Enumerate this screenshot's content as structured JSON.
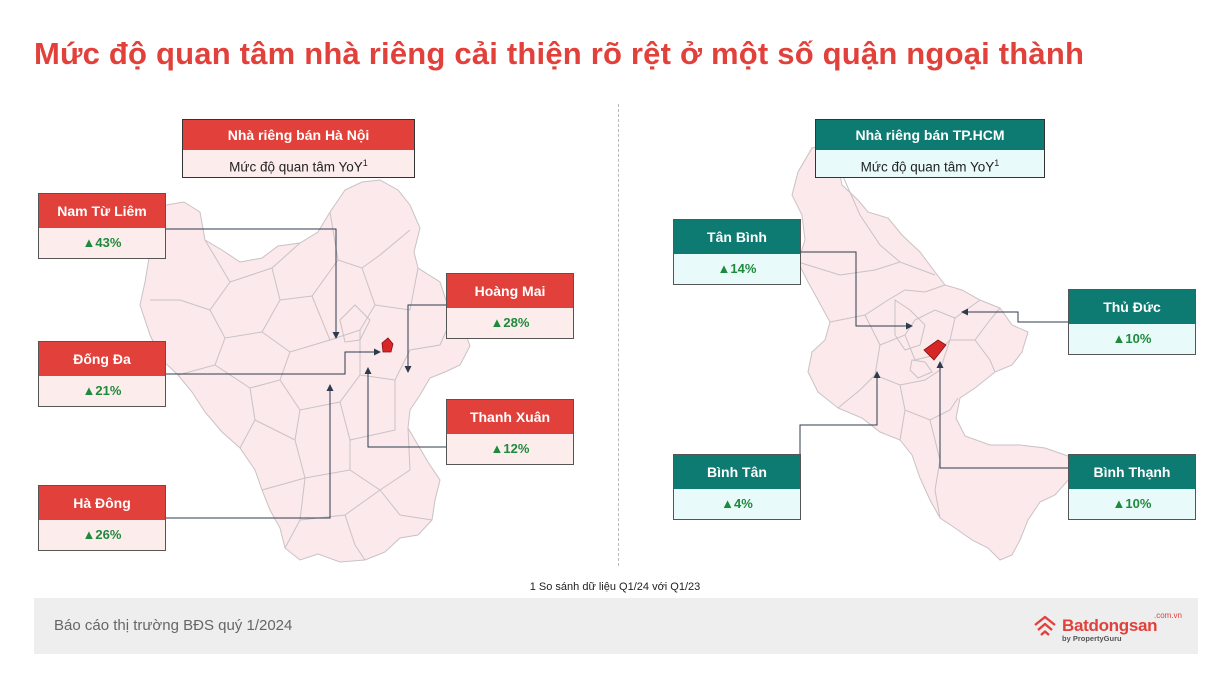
{
  "title": "Mức độ quan tâm nhà riêng cải thiện rõ rệt ở một số quận ngoại thành",
  "colors": {
    "accent_red": "#e2403a",
    "accent_teal": "#0e7b73",
    "increase_green": "#1e8a3c",
    "map_fill": "#fbe9ec"
  },
  "hanoi": {
    "header_title": "Nhà riêng bán Hà Nội",
    "header_subtitle": "Mức độ quan tâm YoY",
    "footnote_mark": "1",
    "districts": [
      {
        "name": "Nam Từ Liêm",
        "change": "▲43%"
      },
      {
        "name": "Hoàng Mai",
        "change": "▲28%"
      },
      {
        "name": "Đống Đa",
        "change": "▲21%"
      },
      {
        "name": "Thanh Xuân",
        "change": "▲12%"
      },
      {
        "name": "Hà Đông",
        "change": "▲26%"
      }
    ]
  },
  "hcm": {
    "header_title": "Nhà riêng bán TP.HCM",
    "header_subtitle": "Mức độ quan tâm YoY",
    "footnote_mark": "1",
    "districts": [
      {
        "name": "Tân Bình",
        "change": "▲14%"
      },
      {
        "name": "Thủ Đức",
        "change": "▲10%"
      },
      {
        "name": "Bình Tân",
        "change": "▲4%"
      },
      {
        "name": "Bình Thạnh",
        "change": "▲10%"
      }
    ]
  },
  "footnote": "1 So sánh dữ liệu Q1/24 với Q1/23",
  "footer": {
    "report": "Báo cáo thị trường BĐS quý 1/2024",
    "logo_brand": "Batdongsan",
    "logo_domain": ".com.vn",
    "logo_by": "by PropertyGuru"
  }
}
